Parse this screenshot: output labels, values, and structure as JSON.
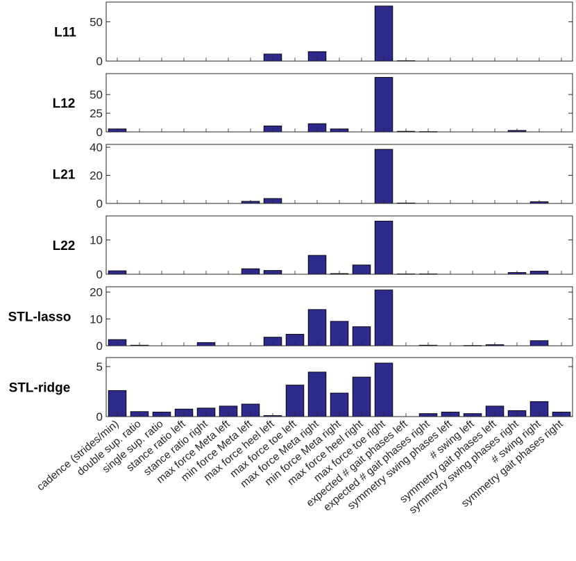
{
  "chart_data": {
    "type": "bar",
    "bar_color": "#2e2a8c",
    "categories": [
      "cadence (strides/min)",
      "double sup. ratio",
      "single sup. ratio",
      "stance ratio left",
      "stance ratio right",
      "max force Meta left",
      "min force Meta left",
      "max force heel left",
      "max force toe left",
      "max force Meta right",
      "min force Meta right",
      "max force heel right",
      "max force toe right",
      "expected # gait phases left",
      "expected # gait phases right",
      "symmetry swing phases left",
      "# swing left",
      "symmetry gait phases left",
      "symmetry swing phases right",
      "# swing right",
      "symmetry gait phases right"
    ],
    "subplots": [
      {
        "label": "L11",
        "ylim": [
          0,
          75
        ],
        "yticks": [
          0,
          50
        ],
        "values": [
          0,
          0,
          0,
          0,
          0,
          0,
          0,
          9,
          0,
          12,
          0,
          0,
          70,
          0.5,
          0,
          0,
          0,
          0,
          0,
          0,
          0
        ]
      },
      {
        "label": "L12",
        "ylim": [
          0,
          78
        ],
        "yticks": [
          0,
          25,
          50
        ],
        "values": [
          4,
          0,
          0,
          0,
          0,
          0,
          0,
          8,
          0,
          11,
          4,
          0,
          73,
          0.8,
          0.4,
          0,
          0,
          0,
          2,
          0,
          0
        ]
      },
      {
        "label": "L21",
        "ylim": [
          0,
          42
        ],
        "yticks": [
          0,
          20,
          40
        ],
        "values": [
          0,
          0,
          0,
          0,
          0,
          0,
          1.5,
          3.5,
          0,
          0,
          0,
          0,
          38.5,
          0.3,
          0,
          0,
          0,
          0,
          0,
          1.2,
          0
        ]
      },
      {
        "label": "L22",
        "ylim": [
          0,
          17
        ],
        "yticks": [
          0,
          10
        ],
        "values": [
          1,
          0,
          0,
          0,
          0,
          0,
          1.6,
          1.1,
          0,
          5.5,
          0.2,
          2.7,
          15.5,
          0.1,
          0.1,
          0,
          0,
          0,
          0.5,
          0.9,
          0
        ]
      },
      {
        "label": "STL-lasso",
        "ylim": [
          0,
          22
        ],
        "yticks": [
          0,
          10,
          20
        ],
        "values": [
          2.3,
          0.2,
          0,
          0,
          1.2,
          0,
          0,
          3.2,
          4.3,
          13.5,
          9.1,
          7.1,
          20.8,
          0,
          0.2,
          0,
          0.1,
          0.4,
          0,
          1.9,
          0
        ]
      },
      {
        "label": "STL-ridge",
        "ylim": [
          0,
          5.9
        ],
        "yticks": [
          0,
          5
        ],
        "values": [
          2.6,
          0.5,
          0.45,
          0.75,
          0.85,
          1.05,
          1.25,
          0.1,
          3.15,
          4.45,
          2.35,
          3.95,
          5.35,
          0,
          0.3,
          0.45,
          0.3,
          1.05,
          0.6,
          1.5,
          0.45
        ]
      }
    ]
  }
}
